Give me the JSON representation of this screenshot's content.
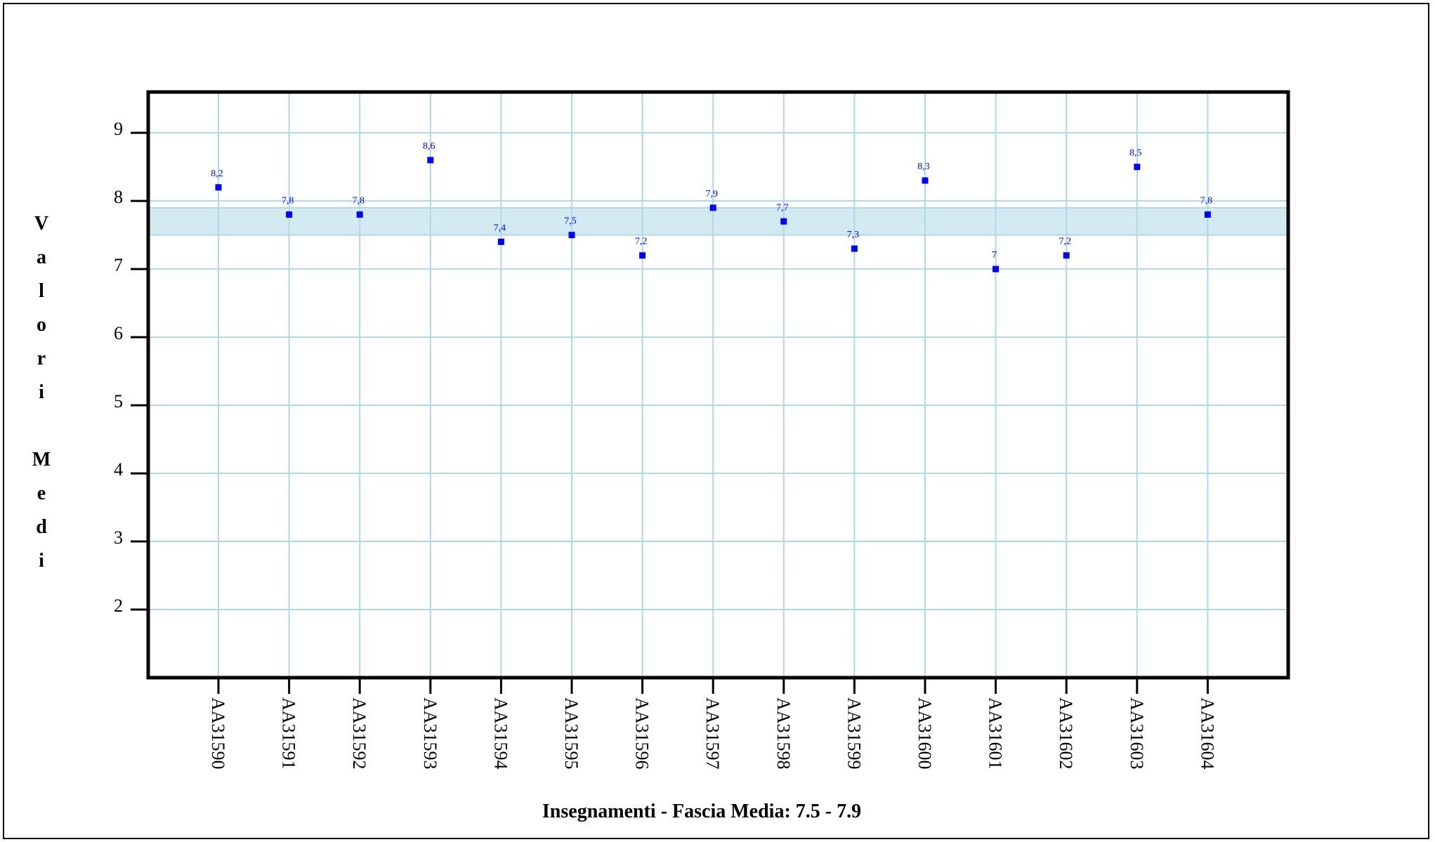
{
  "chart_data": {
    "type": "scatter",
    "categories": [
      "AA31590",
      "AA31591",
      "AA31592",
      "AA31593",
      "AA31594",
      "AA31595",
      "AA31596",
      "AA31597",
      "AA31598",
      "AA31599",
      "AA31600",
      "AA31601",
      "AA31602",
      "AA31603",
      "AA31604"
    ],
    "values": [
      8.2,
      7.8,
      7.8,
      8.6,
      7.4,
      7.5,
      7.2,
      7.9,
      7.7,
      7.3,
      8.3,
      7.0,
      7.2,
      8.5,
      7.8
    ],
    "value_labels": [
      "8,2",
      "7,8",
      "7,8",
      "8,6",
      "7,4",
      "7,5",
      "7,2",
      "7,9",
      "7,7",
      "7,3",
      "8,3",
      "7",
      "7,2",
      "8,5",
      "7,8"
    ],
    "yticks": [
      "2",
      "3",
      "4",
      "5",
      "6",
      "7",
      "8",
      "9"
    ],
    "ylim": [
      1,
      9.6
    ],
    "band": [
      7.5,
      7.9
    ],
    "xlabel": "Insegnamenti - Fascia Media: 7.5 - 7.9",
    "ylabel": "Valori Medi",
    "grid": true,
    "colors": {
      "point": "#0000ff",
      "grid": "#add8e6",
      "band": "#d4eaf2",
      "axis": "#000000"
    }
  }
}
